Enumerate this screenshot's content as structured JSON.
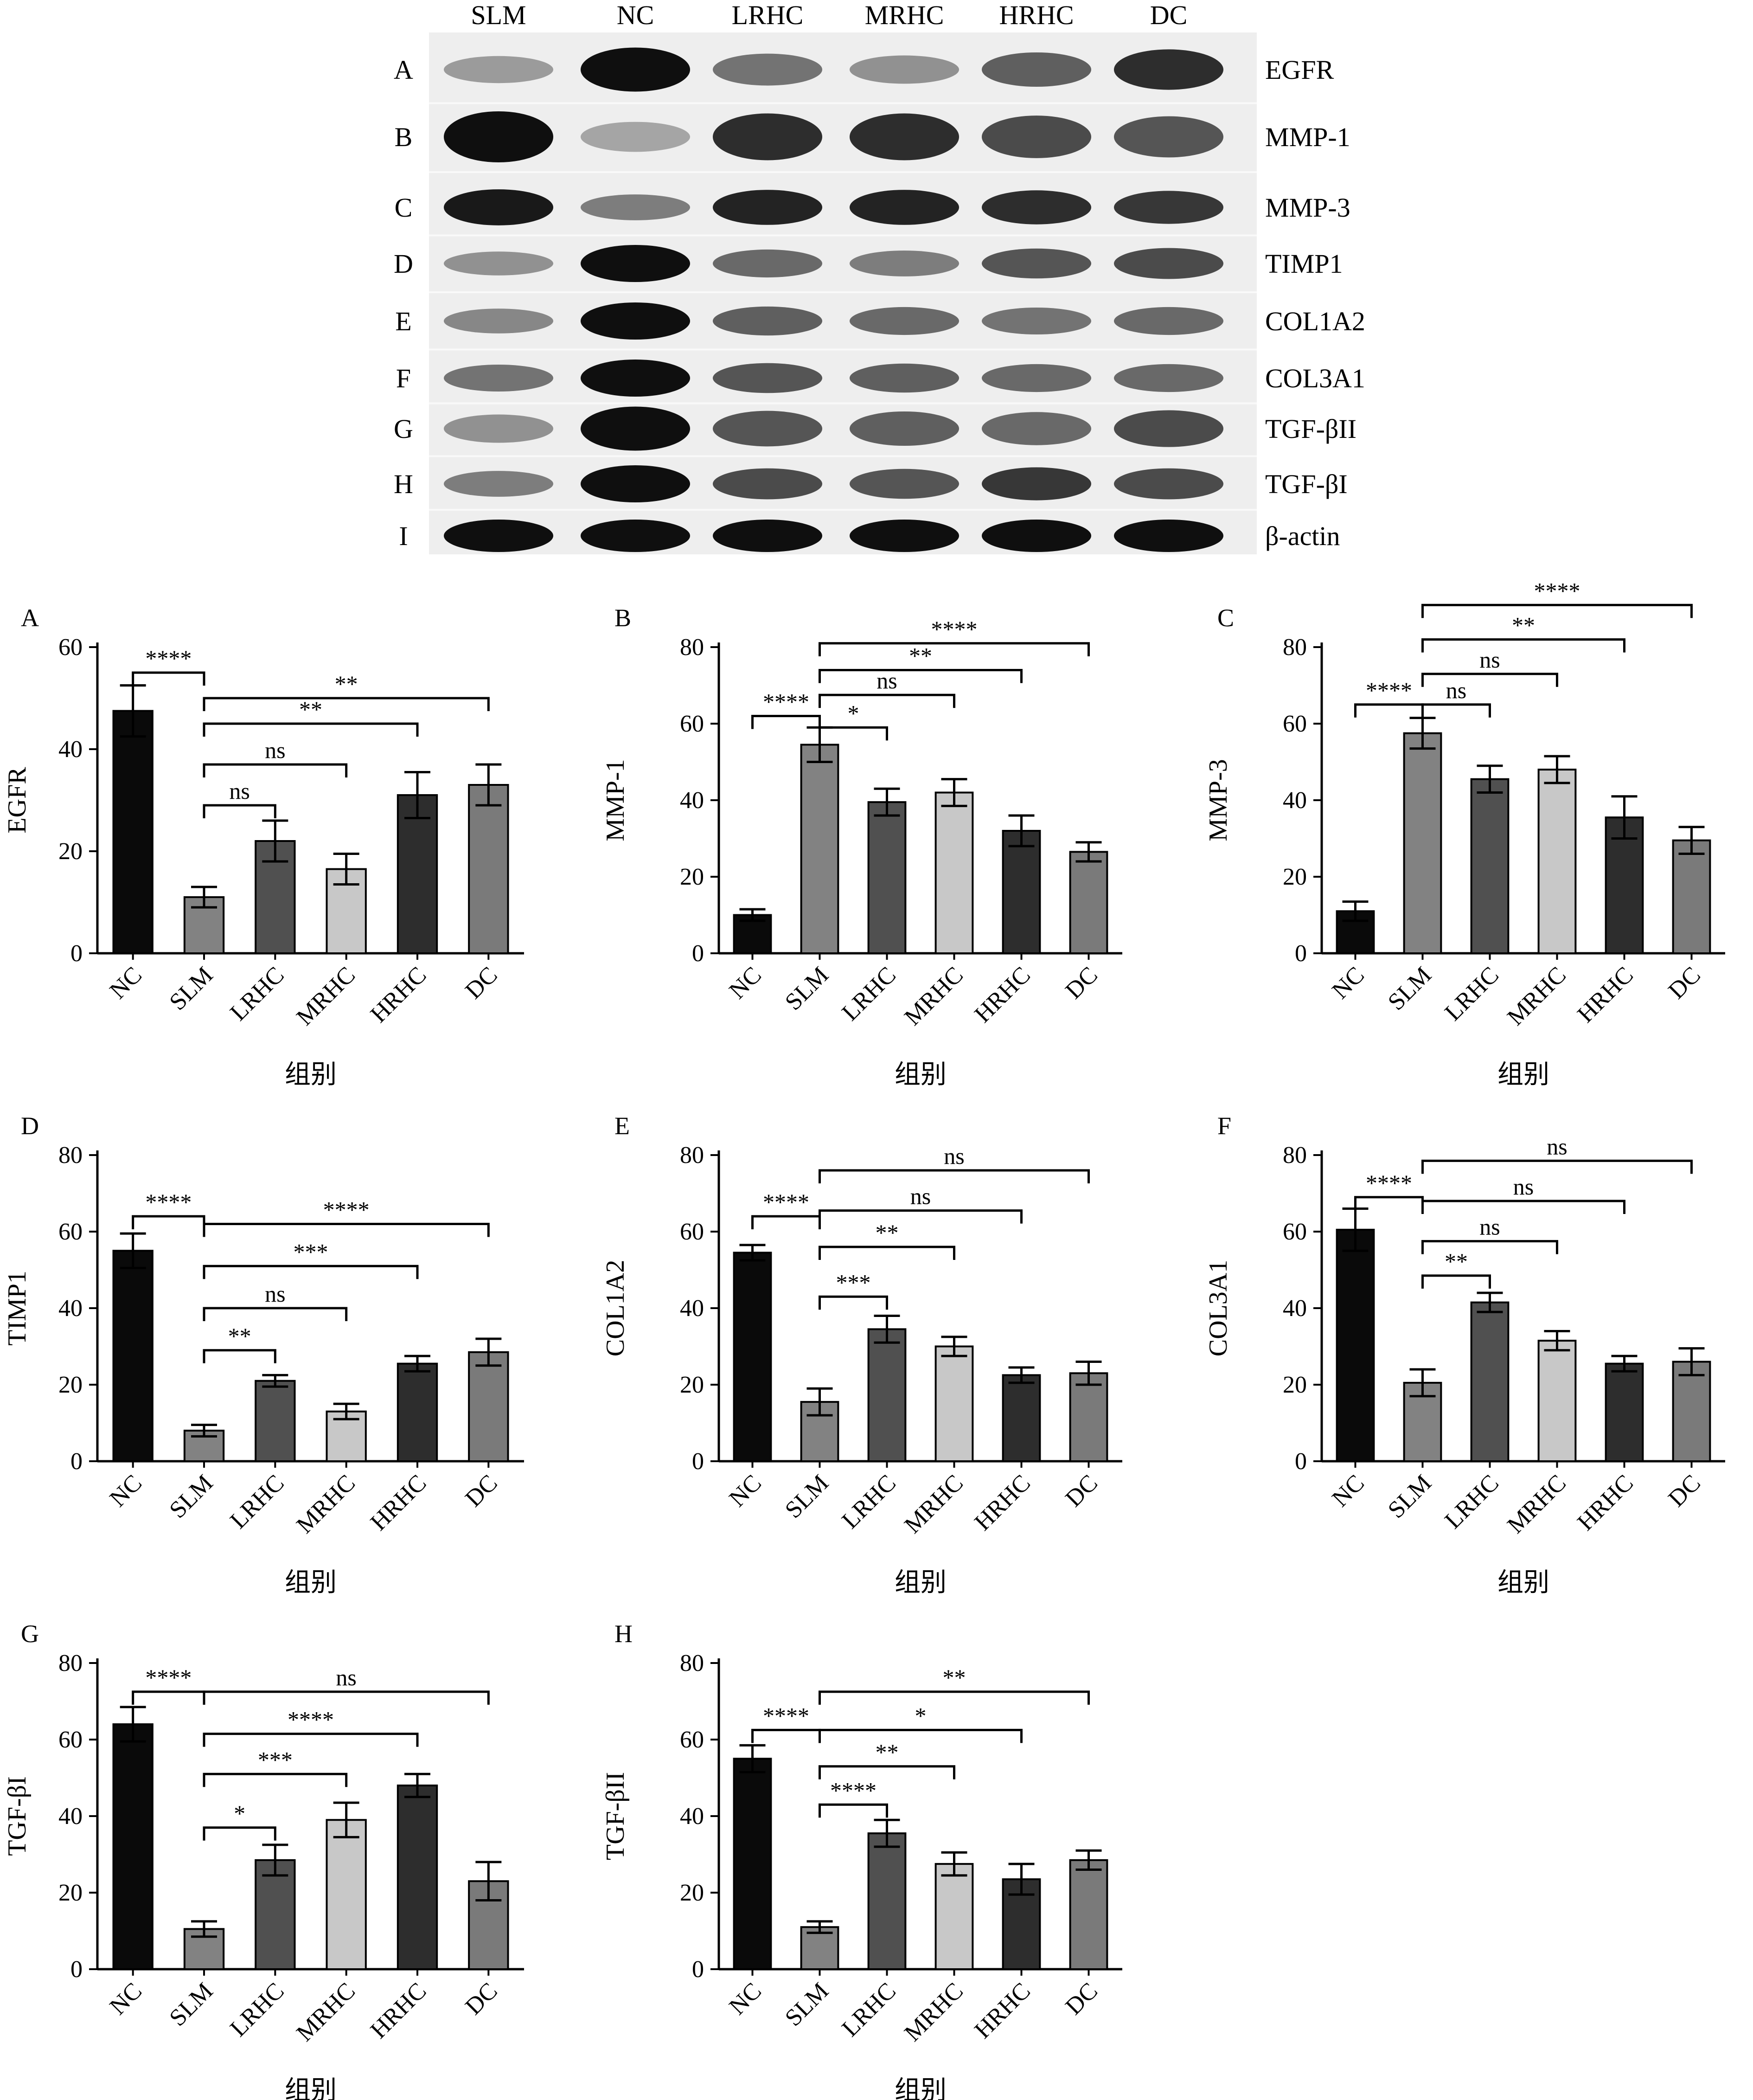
{
  "blot": {
    "lanes": [
      "SLM",
      "NC",
      "LRHC",
      "MRHC",
      "HRHC",
      "DC"
    ],
    "rows": [
      {
        "letter": "A",
        "protein": "EGFR",
        "intensity": [
          0.3,
          1.0,
          0.5,
          0.35,
          0.6,
          0.85
        ]
      },
      {
        "letter": "B",
        "protein": "MMP-1",
        "intensity": [
          1.0,
          0.25,
          0.85,
          0.85,
          0.7,
          0.65
        ]
      },
      {
        "letter": "C",
        "protein": "MMP-3",
        "intensity": [
          0.95,
          0.45,
          0.9,
          0.9,
          0.85,
          0.8
        ]
      },
      {
        "letter": "D",
        "protein": "TIMP1",
        "intensity": [
          0.35,
          1.0,
          0.55,
          0.45,
          0.65,
          0.7
        ]
      },
      {
        "letter": "E",
        "protein": "COL1A2",
        "intensity": [
          0.4,
          1.0,
          0.6,
          0.55,
          0.5,
          0.55
        ]
      },
      {
        "letter": "F",
        "protein": "COL3A1",
        "intensity": [
          0.5,
          1.0,
          0.65,
          0.6,
          0.55,
          0.55
        ]
      },
      {
        "letter": "G",
        "protein": "TGF-βII",
        "intensity": [
          0.35,
          1.0,
          0.65,
          0.6,
          0.55,
          0.7
        ]
      },
      {
        "letter": "H",
        "protein": "TGF-βI",
        "intensity": [
          0.45,
          1.0,
          0.7,
          0.65,
          0.8,
          0.7
        ]
      },
      {
        "letter": "I",
        "protein": "β-actin",
        "intensity": [
          1.0,
          1.0,
          1.0,
          1.0,
          1.0,
          1.0
        ]
      }
    ]
  },
  "chart_data": [
    {
      "type": "bar",
      "panel": "A",
      "ylabel": "EGFR",
      "xlabel": "组别",
      "ylim": [
        0,
        60
      ],
      "yticks": [
        0,
        20,
        40,
        60
      ],
      "categories": [
        "NC",
        "SLM",
        "LRHC",
        "MRHC",
        "HRHC",
        "DC"
      ],
      "values": [
        47.5,
        11,
        22,
        16.5,
        31,
        33
      ],
      "errors": [
        5,
        2,
        4,
        3,
        4.5,
        4
      ],
      "colors": [
        "#0a0a0a",
        "#828282",
        "#505050",
        "#c8c8c8",
        "#2d2d2d",
        "#7a7a7a"
      ],
      "comparisons": [
        {
          "from": 0,
          "to": 1,
          "y": 55,
          "label": "****"
        },
        {
          "from": 1,
          "to": 2,
          "y": 29,
          "label": "ns"
        },
        {
          "from": 1,
          "to": 3,
          "y": 37,
          "label": "ns"
        },
        {
          "from": 1,
          "to": 4,
          "y": 45,
          "label": "**"
        },
        {
          "from": 1,
          "to": 5,
          "y": 50,
          "label": "**"
        }
      ]
    },
    {
      "type": "bar",
      "panel": "B",
      "ylabel": "MMP-1",
      "xlabel": "组别",
      "ylim": [
        0,
        80
      ],
      "yticks": [
        0,
        20,
        40,
        60,
        80
      ],
      "categories": [
        "NC",
        "SLM",
        "LRHC",
        "MRHC",
        "HRHC",
        "DC"
      ],
      "values": [
        10,
        54.5,
        39.5,
        42,
        32,
        26.5
      ],
      "errors": [
        1.5,
        4.5,
        3.5,
        3.5,
        4,
        2.5
      ],
      "colors": [
        "#0a0a0a",
        "#828282",
        "#505050",
        "#c8c8c8",
        "#2d2d2d",
        "#7a7a7a"
      ],
      "comparisons": [
        {
          "from": 0,
          "to": 1,
          "y": 62,
          "label": "****"
        },
        {
          "from": 1,
          "to": 2,
          "y": 59,
          "label": "*"
        },
        {
          "from": 1,
          "to": 3,
          "y": 67.5,
          "label": "ns"
        },
        {
          "from": 1,
          "to": 4,
          "y": 74,
          "label": "**"
        },
        {
          "from": 1,
          "to": 5,
          "y": 81,
          "label": "****"
        }
      ]
    },
    {
      "type": "bar",
      "panel": "C",
      "ylabel": "MMP-3",
      "xlabel": "组别",
      "ylim": [
        0,
        80
      ],
      "yticks": [
        0,
        20,
        40,
        60,
        80
      ],
      "categories": [
        "NC",
        "SLM",
        "LRHC",
        "MRHC",
        "HRHC",
        "DC"
      ],
      "values": [
        11,
        57.5,
        45.5,
        48,
        35.5,
        29.5
      ],
      "errors": [
        2.5,
        4,
        3.5,
        3.5,
        5.5,
        3.5
      ],
      "colors": [
        "#0a0a0a",
        "#828282",
        "#505050",
        "#c8c8c8",
        "#2d2d2d",
        "#7a7a7a"
      ],
      "comparisons": [
        {
          "from": 0,
          "to": 1,
          "y": 65,
          "label": "****"
        },
        {
          "from": 1,
          "to": 2,
          "y": 65,
          "label": "ns"
        },
        {
          "from": 1,
          "to": 3,
          "y": 73,
          "label": "ns"
        },
        {
          "from": 1,
          "to": 4,
          "y": 82,
          "label": "**"
        },
        {
          "from": 1,
          "to": 5,
          "y": 91,
          "label": "****"
        }
      ]
    },
    {
      "type": "bar",
      "panel": "D",
      "ylabel": "TIMP1",
      "xlabel": "组别",
      "ylim": [
        0,
        80
      ],
      "yticks": [
        0,
        20,
        40,
        60,
        80
      ],
      "categories": [
        "NC",
        "SLM",
        "LRHC",
        "MRHC",
        "HRHC",
        "DC"
      ],
      "values": [
        55,
        8,
        21,
        13,
        25.5,
        28.5
      ],
      "errors": [
        4.5,
        1.5,
        1.5,
        2,
        2,
        3.5
      ],
      "colors": [
        "#0a0a0a",
        "#828282",
        "#505050",
        "#c8c8c8",
        "#2d2d2d",
        "#7a7a7a"
      ],
      "comparisons": [
        {
          "from": 0,
          "to": 1,
          "y": 64,
          "label": "****"
        },
        {
          "from": 1,
          "to": 2,
          "y": 29,
          "label": "**"
        },
        {
          "from": 1,
          "to": 3,
          "y": 40,
          "label": "ns"
        },
        {
          "from": 1,
          "to": 4,
          "y": 51,
          "label": "***"
        },
        {
          "from": 1,
          "to": 5,
          "y": 62,
          "label": "****"
        }
      ]
    },
    {
      "type": "bar",
      "panel": "E",
      "ylabel": "COL1A2",
      "xlabel": "组别",
      "ylim": [
        0,
        80
      ],
      "yticks": [
        0,
        20,
        40,
        60,
        80
      ],
      "categories": [
        "NC",
        "SLM",
        "LRHC",
        "MRHC",
        "HRHC",
        "DC"
      ],
      "values": [
        54.5,
        15.5,
        34.5,
        30,
        22.5,
        23
      ],
      "errors": [
        2,
        3.5,
        3.5,
        2.5,
        2,
        3
      ],
      "colors": [
        "#0a0a0a",
        "#828282",
        "#505050",
        "#c8c8c8",
        "#2d2d2d",
        "#7a7a7a"
      ],
      "comparisons": [
        {
          "from": 0,
          "to": 1,
          "y": 64,
          "label": "****"
        },
        {
          "from": 1,
          "to": 2,
          "y": 43,
          "label": "***"
        },
        {
          "from": 1,
          "to": 3,
          "y": 56,
          "label": "**"
        },
        {
          "from": 1,
          "to": 4,
          "y": 65.5,
          "label": "ns"
        },
        {
          "from": 1,
          "to": 5,
          "y": 76,
          "label": "ns"
        }
      ]
    },
    {
      "type": "bar",
      "panel": "F",
      "ylabel": "COL3A1",
      "xlabel": "组别",
      "ylim": [
        0,
        80
      ],
      "yticks": [
        0,
        20,
        40,
        60,
        80
      ],
      "categories": [
        "NC",
        "SLM",
        "LRHC",
        "MRHC",
        "HRHC",
        "DC"
      ],
      "values": [
        60.5,
        20.5,
        41.5,
        31.5,
        25.5,
        26
      ],
      "errors": [
        5.5,
        3.5,
        2.5,
        2.5,
        2,
        3.5
      ],
      "colors": [
        "#0a0a0a",
        "#828282",
        "#505050",
        "#c8c8c8",
        "#2d2d2d",
        "#7a7a7a"
      ],
      "comparisons": [
        {
          "from": 0,
          "to": 1,
          "y": 69,
          "label": "****"
        },
        {
          "from": 1,
          "to": 2,
          "y": 48.5,
          "label": "**"
        },
        {
          "from": 1,
          "to": 3,
          "y": 57.5,
          "label": "ns"
        },
        {
          "from": 1,
          "to": 4,
          "y": 68,
          "label": "ns"
        },
        {
          "from": 1,
          "to": 5,
          "y": 78.5,
          "label": "ns"
        }
      ]
    },
    {
      "type": "bar",
      "panel": "G",
      "ylabel": "TGF-βI",
      "xlabel": "组别",
      "ylim": [
        0,
        80
      ],
      "yticks": [
        0,
        20,
        40,
        60,
        80
      ],
      "categories": [
        "NC",
        "SLM",
        "LRHC",
        "MRHC",
        "HRHC",
        "DC"
      ],
      "values": [
        64,
        10.5,
        28.5,
        39,
        48,
        23
      ],
      "errors": [
        4.5,
        2,
        4,
        4.5,
        3,
        5
      ],
      "colors": [
        "#0a0a0a",
        "#828282",
        "#505050",
        "#c8c8c8",
        "#2d2d2d",
        "#7a7a7a"
      ],
      "comparisons": [
        {
          "from": 0,
          "to": 1,
          "y": 72.5,
          "label": "****"
        },
        {
          "from": 1,
          "to": 2,
          "y": 37,
          "label": "*"
        },
        {
          "from": 1,
          "to": 3,
          "y": 51,
          "label": "***"
        },
        {
          "from": 1,
          "to": 4,
          "y": 61.5,
          "label": "****"
        },
        {
          "from": 1,
          "to": 5,
          "y": 72.5,
          "label": "ns"
        }
      ]
    },
    {
      "type": "bar",
      "panel": "H",
      "ylabel": "TGF-βII",
      "xlabel": "组别",
      "ylim": [
        0,
        80
      ],
      "yticks": [
        0,
        20,
        40,
        60,
        80
      ],
      "categories": [
        "NC",
        "SLM",
        "LRHC",
        "MRHC",
        "HRHC",
        "DC"
      ],
      "values": [
        55,
        11,
        35.5,
        27.5,
        23.5,
        28.5
      ],
      "errors": [
        3.5,
        1.5,
        3.5,
        3,
        4,
        2.5
      ],
      "colors": [
        "#0a0a0a",
        "#828282",
        "#505050",
        "#c8c8c8",
        "#2d2d2d",
        "#7a7a7a"
      ],
      "comparisons": [
        {
          "from": 0,
          "to": 1,
          "y": 62.5,
          "label": "****"
        },
        {
          "from": 1,
          "to": 2,
          "y": 43,
          "label": "****"
        },
        {
          "from": 1,
          "to": 3,
          "y": 53,
          "label": "**"
        },
        {
          "from": 1,
          "to": 4,
          "y": 62.5,
          "label": "*"
        },
        {
          "from": 1,
          "to": 5,
          "y": 72.5,
          "label": "**"
        }
      ]
    }
  ]
}
